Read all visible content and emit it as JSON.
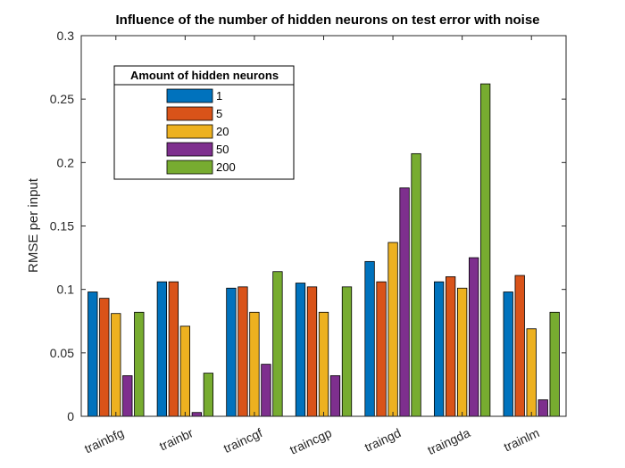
{
  "chart_data": {
    "type": "bar",
    "title": "Influence of the number of hidden neurons on test error with noise",
    "xlabel": "",
    "ylabel": "RMSE per input",
    "ylim": [
      0,
      0.3
    ],
    "yticks": [
      "0",
      "0.05",
      "0.1",
      "0.15",
      "0.2",
      "0.25",
      "0.3"
    ],
    "categories": [
      "trainbfg",
      "trainbr",
      "traincgf",
      "traincgp",
      "traingd",
      "traingda",
      "trainlm"
    ],
    "legend_title": "Amount of hidden neurons",
    "legend_position": "top-left",
    "grid": false,
    "series": [
      {
        "name": "1",
        "color": "#0072BD",
        "values": [
          0.098,
          0.106,
          0.101,
          0.105,
          0.122,
          0.106,
          0.098
        ]
      },
      {
        "name": "5",
        "color": "#D95319",
        "values": [
          0.093,
          0.106,
          0.102,
          0.102,
          0.106,
          0.11,
          0.111
        ]
      },
      {
        "name": "20",
        "color": "#EDB120",
        "values": [
          0.081,
          0.071,
          0.082,
          0.082,
          0.137,
          0.101,
          0.069
        ]
      },
      {
        "name": "50",
        "color": "#7E2F8E",
        "values": [
          0.032,
          0.003,
          0.041,
          0.032,
          0.18,
          0.125,
          0.013
        ]
      },
      {
        "name": "200",
        "color": "#77AC30",
        "values": [
          0.082,
          0.034,
          0.114,
          0.102,
          0.207,
          0.262,
          0.082
        ]
      }
    ]
  }
}
